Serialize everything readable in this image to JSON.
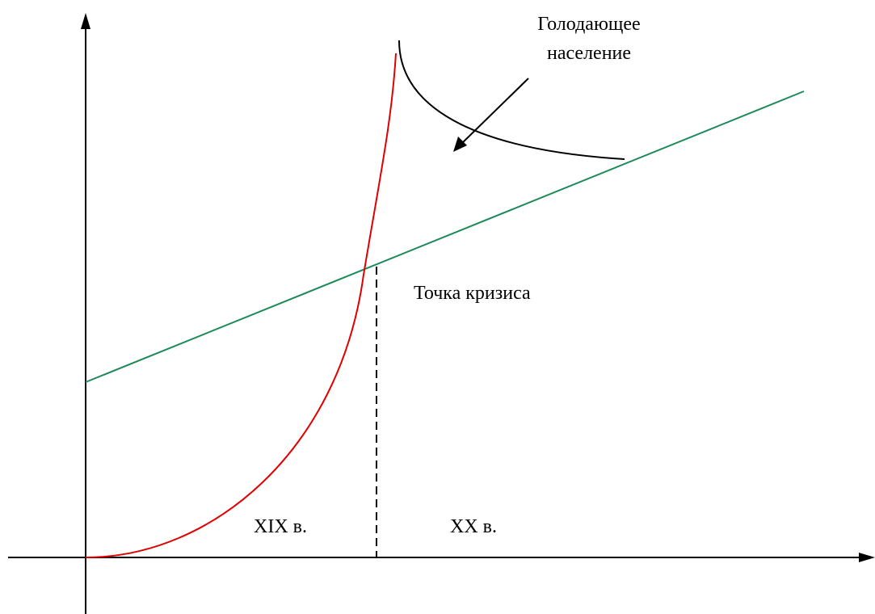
{
  "labels": {
    "starving_line1": "Голодающее",
    "starving_line2": "население",
    "crisis_point": "Точка кризиса",
    "century_19": "XIX в.",
    "century_20": "XX в."
  },
  "colors": {
    "population_curve": "#e00000",
    "food_line": "#1e8a5a",
    "starving_curve": "#000000",
    "axes": "#000000"
  }
}
